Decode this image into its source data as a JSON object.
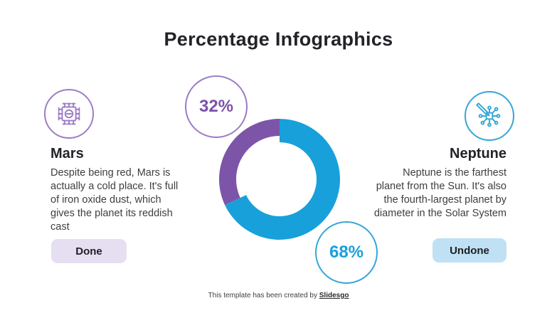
{
  "theme": {
    "background": "#ffffff",
    "text_dark": "#232228",
    "text_body": "#3e3d42",
    "purple": "#7B52A8",
    "purple_light": "#9C7CC6",
    "blue": "#18A0DB",
    "blue_light": "#35A6D7",
    "done_button_bg": "#E6DFF2",
    "undone_button_bg": "#BFE1F3"
  },
  "header": {
    "title": "Percentage Infographics"
  },
  "mars": {
    "icon": "chip-icon",
    "heading": "Mars",
    "description": "Despite being red, Mars is actually a cold place. It's full of iron oxide dust, which gives the planet its reddish cast",
    "button_label": "Done"
  },
  "neptune": {
    "icon": "circuit-pencil-icon",
    "heading": "Neptune",
    "description": "Neptune is the farthest planet from the Sun. It's also the fourth-largest planet by diameter in the Solar System",
    "button_label": "Undone"
  },
  "chart_data": {
    "type": "pie",
    "subtype": "donut",
    "title": "",
    "start_angle_deg": 0,
    "direction": "clockwise",
    "outer_radius": 85,
    "inner_radii": [
      52,
      61
    ],
    "legend_position": "none",
    "slices": [
      {
        "label": "Neptune",
        "value": 68,
        "display": "68%",
        "color": "#18A0DB"
      },
      {
        "label": "Mars",
        "value": 32,
        "display": "32%",
        "color": "#7C55A8"
      }
    ]
  },
  "footer": {
    "prefix": "This template has been created by ",
    "brand": "Slidesgo"
  }
}
